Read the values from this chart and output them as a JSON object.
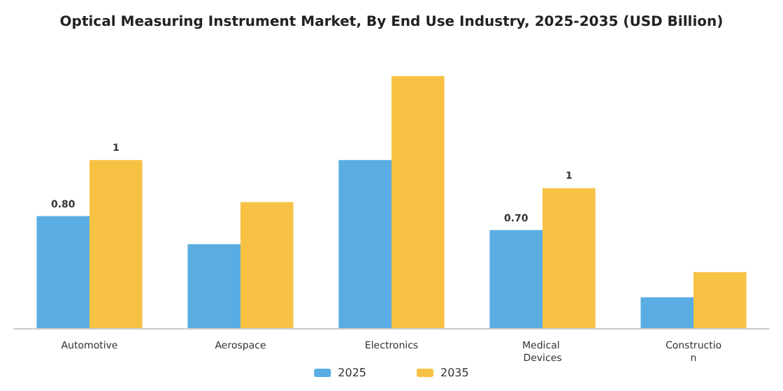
{
  "chart_data": {
    "type": "bar",
    "title": "Optical Measuring Instrument Market, By End Use Industry, 2025-2035 (USD Billion)",
    "categories": [
      "Automotive",
      "Aerospace",
      "Electronics",
      "Medical Devices",
      "Construction"
    ],
    "series": [
      {
        "name": "2025",
        "color": "#5aade2",
        "values": [
          0.8,
          0.6,
          1.2,
          0.7,
          0.22
        ],
        "value_labels": [
          "0.80",
          null,
          null,
          "0.70",
          null
        ]
      },
      {
        "name": "2035",
        "color": "#f7c244",
        "values": [
          1.2,
          0.9,
          1.8,
          1.0,
          0.4
        ],
        "value_labels": [
          "1",
          null,
          null,
          "1",
          null
        ]
      }
    ],
    "legend": "bottom"
  }
}
